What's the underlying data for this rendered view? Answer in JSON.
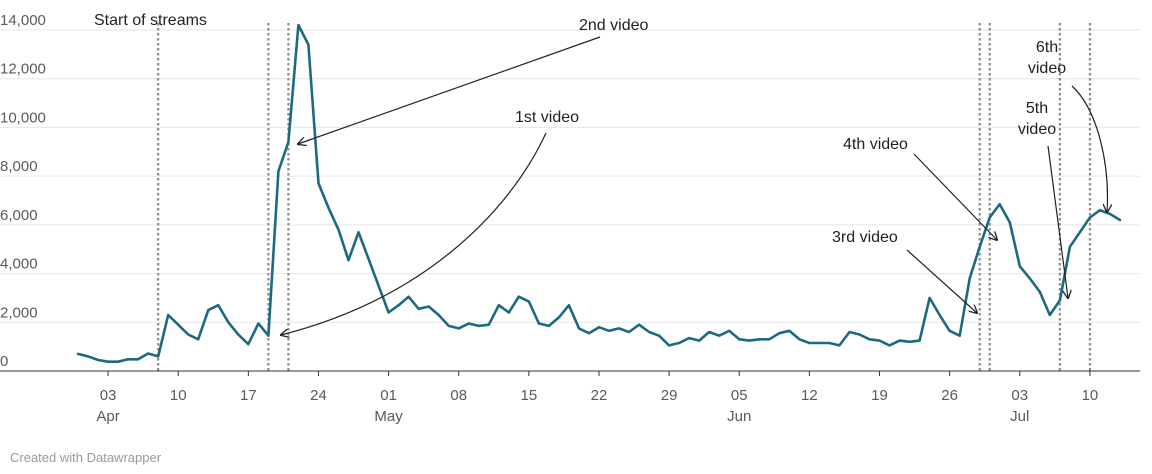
{
  "chart_data": {
    "type": "line",
    "x_axis": {
      "ticks": [
        {
          "date": "2021-04-03",
          "day": "03",
          "month": "Apr"
        },
        {
          "date": "2021-04-10",
          "day": "10",
          "month": ""
        },
        {
          "date": "2021-04-17",
          "day": "17",
          "month": ""
        },
        {
          "date": "2021-04-24",
          "day": "24",
          "month": ""
        },
        {
          "date": "2021-05-01",
          "day": "01",
          "month": "May"
        },
        {
          "date": "2021-05-08",
          "day": "08",
          "month": ""
        },
        {
          "date": "2021-05-15",
          "day": "15",
          "month": ""
        },
        {
          "date": "2021-05-22",
          "day": "22",
          "month": ""
        },
        {
          "date": "2021-05-29",
          "day": "29",
          "month": ""
        },
        {
          "date": "2021-06-05",
          "day": "05",
          "month": "Jun"
        },
        {
          "date": "2021-06-12",
          "day": "12",
          "month": ""
        },
        {
          "date": "2021-06-19",
          "day": "19",
          "month": ""
        },
        {
          "date": "2021-06-26",
          "day": "26",
          "month": ""
        },
        {
          "date": "2021-07-03",
          "day": "03",
          "month": "Jul"
        },
        {
          "date": "2021-07-10",
          "day": "10",
          "month": ""
        }
      ],
      "range": [
        "2021-03-30",
        "2021-07-15"
      ]
    },
    "y_axis": {
      "ticks": [
        {
          "value": 0,
          "label": "0"
        },
        {
          "value": 2000,
          "label": "2,000"
        },
        {
          "value": 4000,
          "label": "4,000"
        },
        {
          "value": 6000,
          "label": "6,000"
        },
        {
          "value": 8000,
          "label": "8,000"
        },
        {
          "value": 10000,
          "label": "10,000"
        },
        {
          "value": 12000,
          "label": "12,000"
        },
        {
          "value": 14000,
          "label": "14,000"
        }
      ],
      "range": [
        0,
        14000
      ]
    },
    "grid": true,
    "line_color": "#1d6a80",
    "series": [
      {
        "start_date": "2021-03-31",
        "values": [
          700,
          600,
          450,
          380,
          380,
          480,
          480,
          720,
          600,
          2300,
          1900,
          1500,
          1300,
          2500,
          2700,
          2000,
          1500,
          1100,
          1950,
          1450,
          8200,
          9400,
          14200,
          13400,
          7700,
          6700,
          5800,
          4550,
          5700,
          4600,
          3500,
          2400,
          2700,
          3050,
          2550,
          2650,
          2300,
          1850,
          1750,
          1950,
          1850,
          1900,
          2700,
          2400,
          3050,
          2850,
          1950,
          1850,
          2200,
          2700,
          1750,
          1550,
          1800,
          1650,
          1750,
          1600,
          1900,
          1600,
          1450,
          1050,
          1150,
          1350,
          1250,
          1600,
          1450,
          1650,
          1300,
          1250,
          1300,
          1300,
          1550,
          1650,
          1300,
          1150,
          1150,
          1150,
          1050,
          1600,
          1500,
          1300,
          1250,
          1050,
          1250,
          1200,
          1250,
          3000,
          2300,
          1650,
          1450,
          3800,
          5100,
          6300,
          6850,
          6100,
          4300,
          3800,
          3250,
          2300,
          2900,
          5100,
          5700,
          6300,
          6600,
          6450,
          6200
        ]
      }
    ],
    "vlines": [
      {
        "date": "2021-04-08",
        "label": "Start of streams"
      },
      {
        "date": "2021-04-19",
        "label": "1st video"
      },
      {
        "date": "2021-04-21",
        "label": "2nd video"
      },
      {
        "date": "2021-06-29",
        "label": "3rd video"
      },
      {
        "date": "2021-06-30",
        "label": "4th video"
      },
      {
        "date": "2021-07-07",
        "label": "5th video"
      },
      {
        "date": "2021-07-10",
        "label": "6th video"
      }
    ],
    "annotations": [
      {
        "lines": [
          "Start of streams"
        ]
      },
      {
        "lines": [
          "2nd video"
        ]
      },
      {
        "lines": [
          "1st video"
        ]
      },
      {
        "lines": [
          "4th video"
        ]
      },
      {
        "lines": [
          "3rd video"
        ]
      },
      {
        "lines": [
          "6th",
          "video"
        ]
      },
      {
        "lines": [
          "5th",
          "video"
        ]
      }
    ]
  },
  "footer": {
    "credit": "Created with Datawrapper"
  }
}
